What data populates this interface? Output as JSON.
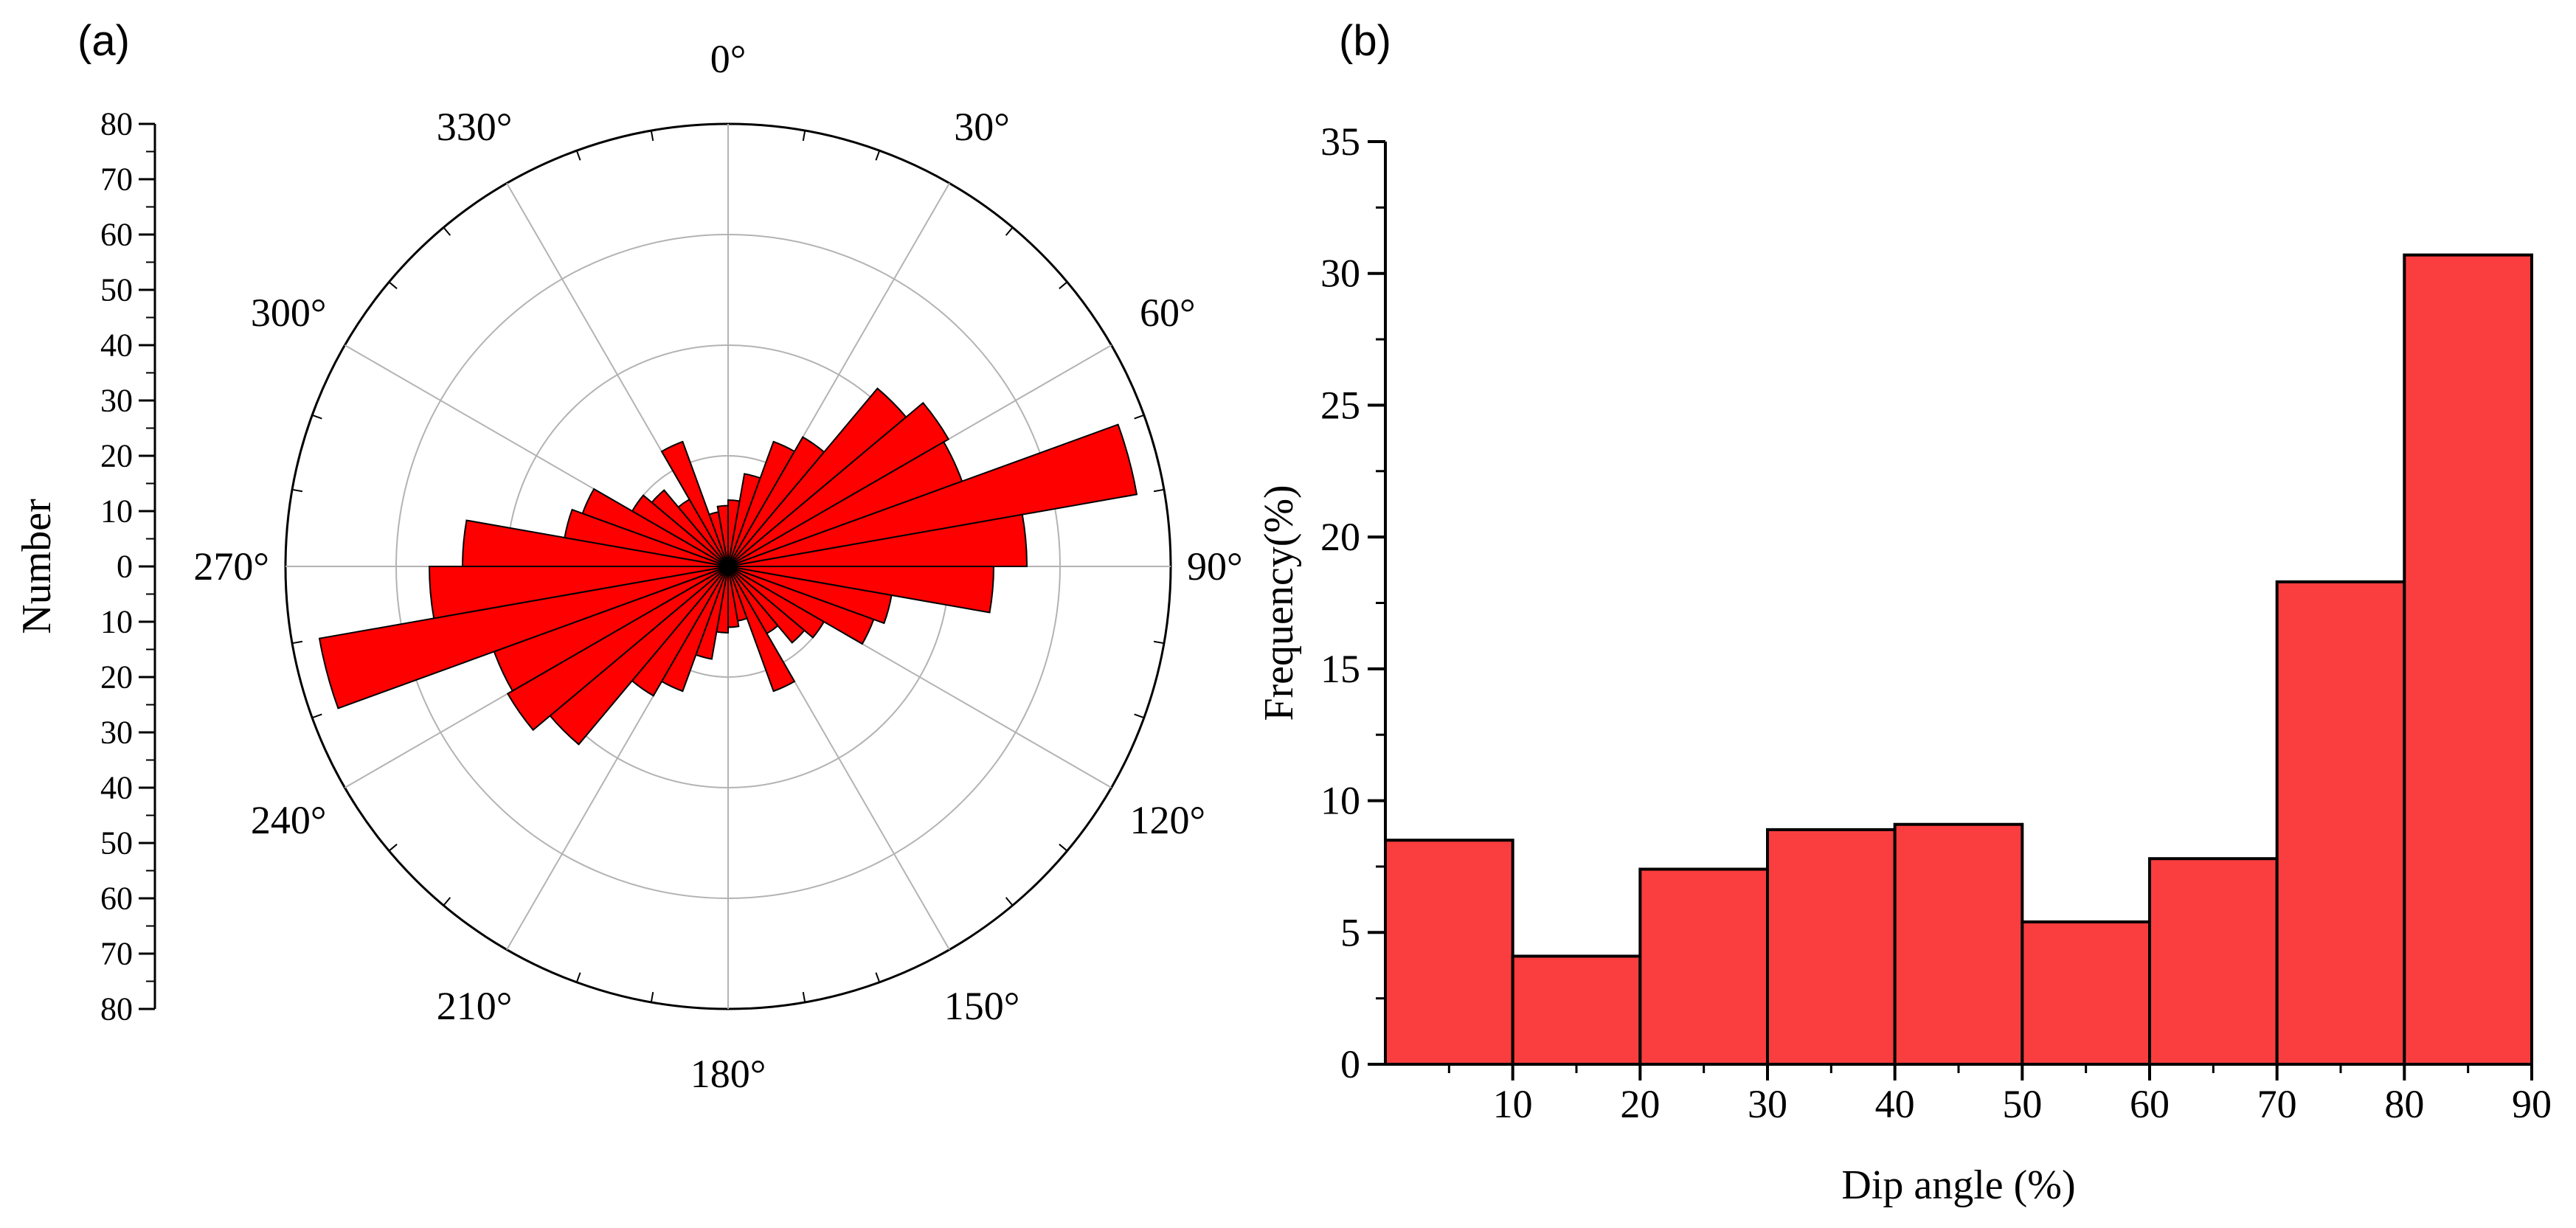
{
  "panels": {
    "a_label": "(a)",
    "b_label": "(b)"
  },
  "chart_data": [
    {
      "type": "rose",
      "panel": "(a)",
      "ylabel": "Number",
      "radial_range": [
        0,
        80
      ],
      "radial_ticks": [
        "80",
        "70",
        "60",
        "50",
        "40",
        "30",
        "20",
        "10",
        "0",
        "10",
        "20",
        "30",
        "40",
        "50",
        "60",
        "70",
        "80"
      ],
      "angle_labels": [
        "0°",
        "30°",
        "60°",
        "90°",
        "120°",
        "150°",
        "180°",
        "210°",
        "240°",
        "270°",
        "300°",
        "330°"
      ],
      "rings": [
        20,
        40,
        60,
        80
      ],
      "bin_width_deg": 10,
      "symmetric": true,
      "bins": [
        {
          "from": 0,
          "to": 10,
          "value": 12
        },
        {
          "from": 10,
          "to": 20,
          "value": 17
        },
        {
          "from": 20,
          "to": 30,
          "value": 24
        },
        {
          "from": 30,
          "to": 40,
          "value": 27
        },
        {
          "from": 40,
          "to": 50,
          "value": 42
        },
        {
          "from": 50,
          "to": 60,
          "value": 46
        },
        {
          "from": 60,
          "to": 70,
          "value": 45
        },
        {
          "from": 70,
          "to": 80,
          "value": 75
        },
        {
          "from": 80,
          "to": 90,
          "value": 54
        },
        {
          "from": 90,
          "to": 100,
          "value": 48
        },
        {
          "from": 100,
          "to": 110,
          "value": 30
        },
        {
          "from": 110,
          "to": 120,
          "value": 28
        },
        {
          "from": 120,
          "to": 130,
          "value": 20
        },
        {
          "from": 130,
          "to": 140,
          "value": 18
        },
        {
          "from": 140,
          "to": 150,
          "value": 14
        },
        {
          "from": 150,
          "to": 160,
          "value": 24
        },
        {
          "from": 160,
          "to": 170,
          "value": 10
        },
        {
          "from": 170,
          "to": 180,
          "value": 11
        }
      ],
      "bar_color": "#ff0000"
    },
    {
      "type": "bar",
      "panel": "(b)",
      "xlabel": "Dip angle (%)",
      "ylabel": "Frequency(%)",
      "xlim": [
        0,
        90
      ],
      "ylim": [
        0,
        35
      ],
      "xticks": [
        10,
        20,
        30,
        40,
        50,
        60,
        70,
        80,
        90
      ],
      "yticks": [
        0,
        5,
        10,
        15,
        20,
        25,
        30,
        35
      ],
      "bins": [
        {
          "from": 0,
          "to": 10,
          "value": 8.5
        },
        {
          "from": 10,
          "to": 20,
          "value": 4.1
        },
        {
          "from": 20,
          "to": 30,
          "value": 7.4
        },
        {
          "from": 30,
          "to": 40,
          "value": 8.9
        },
        {
          "from": 40,
          "to": 50,
          "value": 9.1
        },
        {
          "from": 50,
          "to": 60,
          "value": 5.4
        },
        {
          "from": 60,
          "to": 70,
          "value": 7.8
        },
        {
          "from": 70,
          "to": 80,
          "value": 18.3
        },
        {
          "from": 80,
          "to": 90,
          "value": 30.7
        }
      ],
      "bar_color": "#fa3d3e"
    }
  ]
}
